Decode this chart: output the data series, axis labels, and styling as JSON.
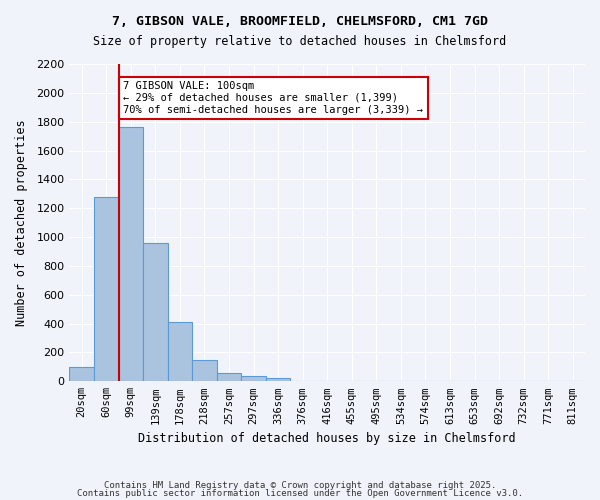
{
  "title_line1": "7, GIBSON VALE, BROOMFIELD, CHELMSFORD, CM1 7GD",
  "title_line2": "Size of property relative to detached houses in Chelmsford",
  "xlabel": "Distribution of detached houses by size in Chelmsford",
  "ylabel": "Number of detached properties",
  "categories": [
    "20sqm",
    "60sqm",
    "99sqm",
    "139sqm",
    "178sqm",
    "218sqm",
    "257sqm",
    "297sqm",
    "336sqm",
    "376sqm",
    "416sqm",
    "455sqm",
    "495sqm",
    "534sqm",
    "574sqm",
    "613sqm",
    "653sqm",
    "692sqm",
    "732sqm",
    "771sqm",
    "811sqm"
  ],
  "values": [
    100,
    1280,
    1760,
    960,
    410,
    150,
    60,
    40,
    20,
    0,
    0,
    0,
    0,
    0,
    0,
    0,
    0,
    0,
    0,
    0,
    0
  ],
  "bar_color": "#aac4e0",
  "bar_edge_color": "#5b9bd5",
  "background_color": "#f0f4fa",
  "grid_color": "#ffffff",
  "annotation_text": "7 GIBSON VALE: 100sqm\n← 29% of detached houses are smaller (1,399)\n70% of semi-detached houses are larger (3,339) →",
  "vline_x": 1,
  "vline_color": "#cc0000",
  "annotation_box_edge": "#cc0000",
  "ylim": [
    0,
    2200
  ],
  "yticks": [
    0,
    200,
    400,
    600,
    800,
    1000,
    1200,
    1400,
    1600,
    1800,
    2000,
    2200
  ],
  "footer_line1": "Contains HM Land Registry data © Crown copyright and database right 2025.",
  "footer_line2": "Contains public sector information licensed under the Open Government Licence v3.0."
}
